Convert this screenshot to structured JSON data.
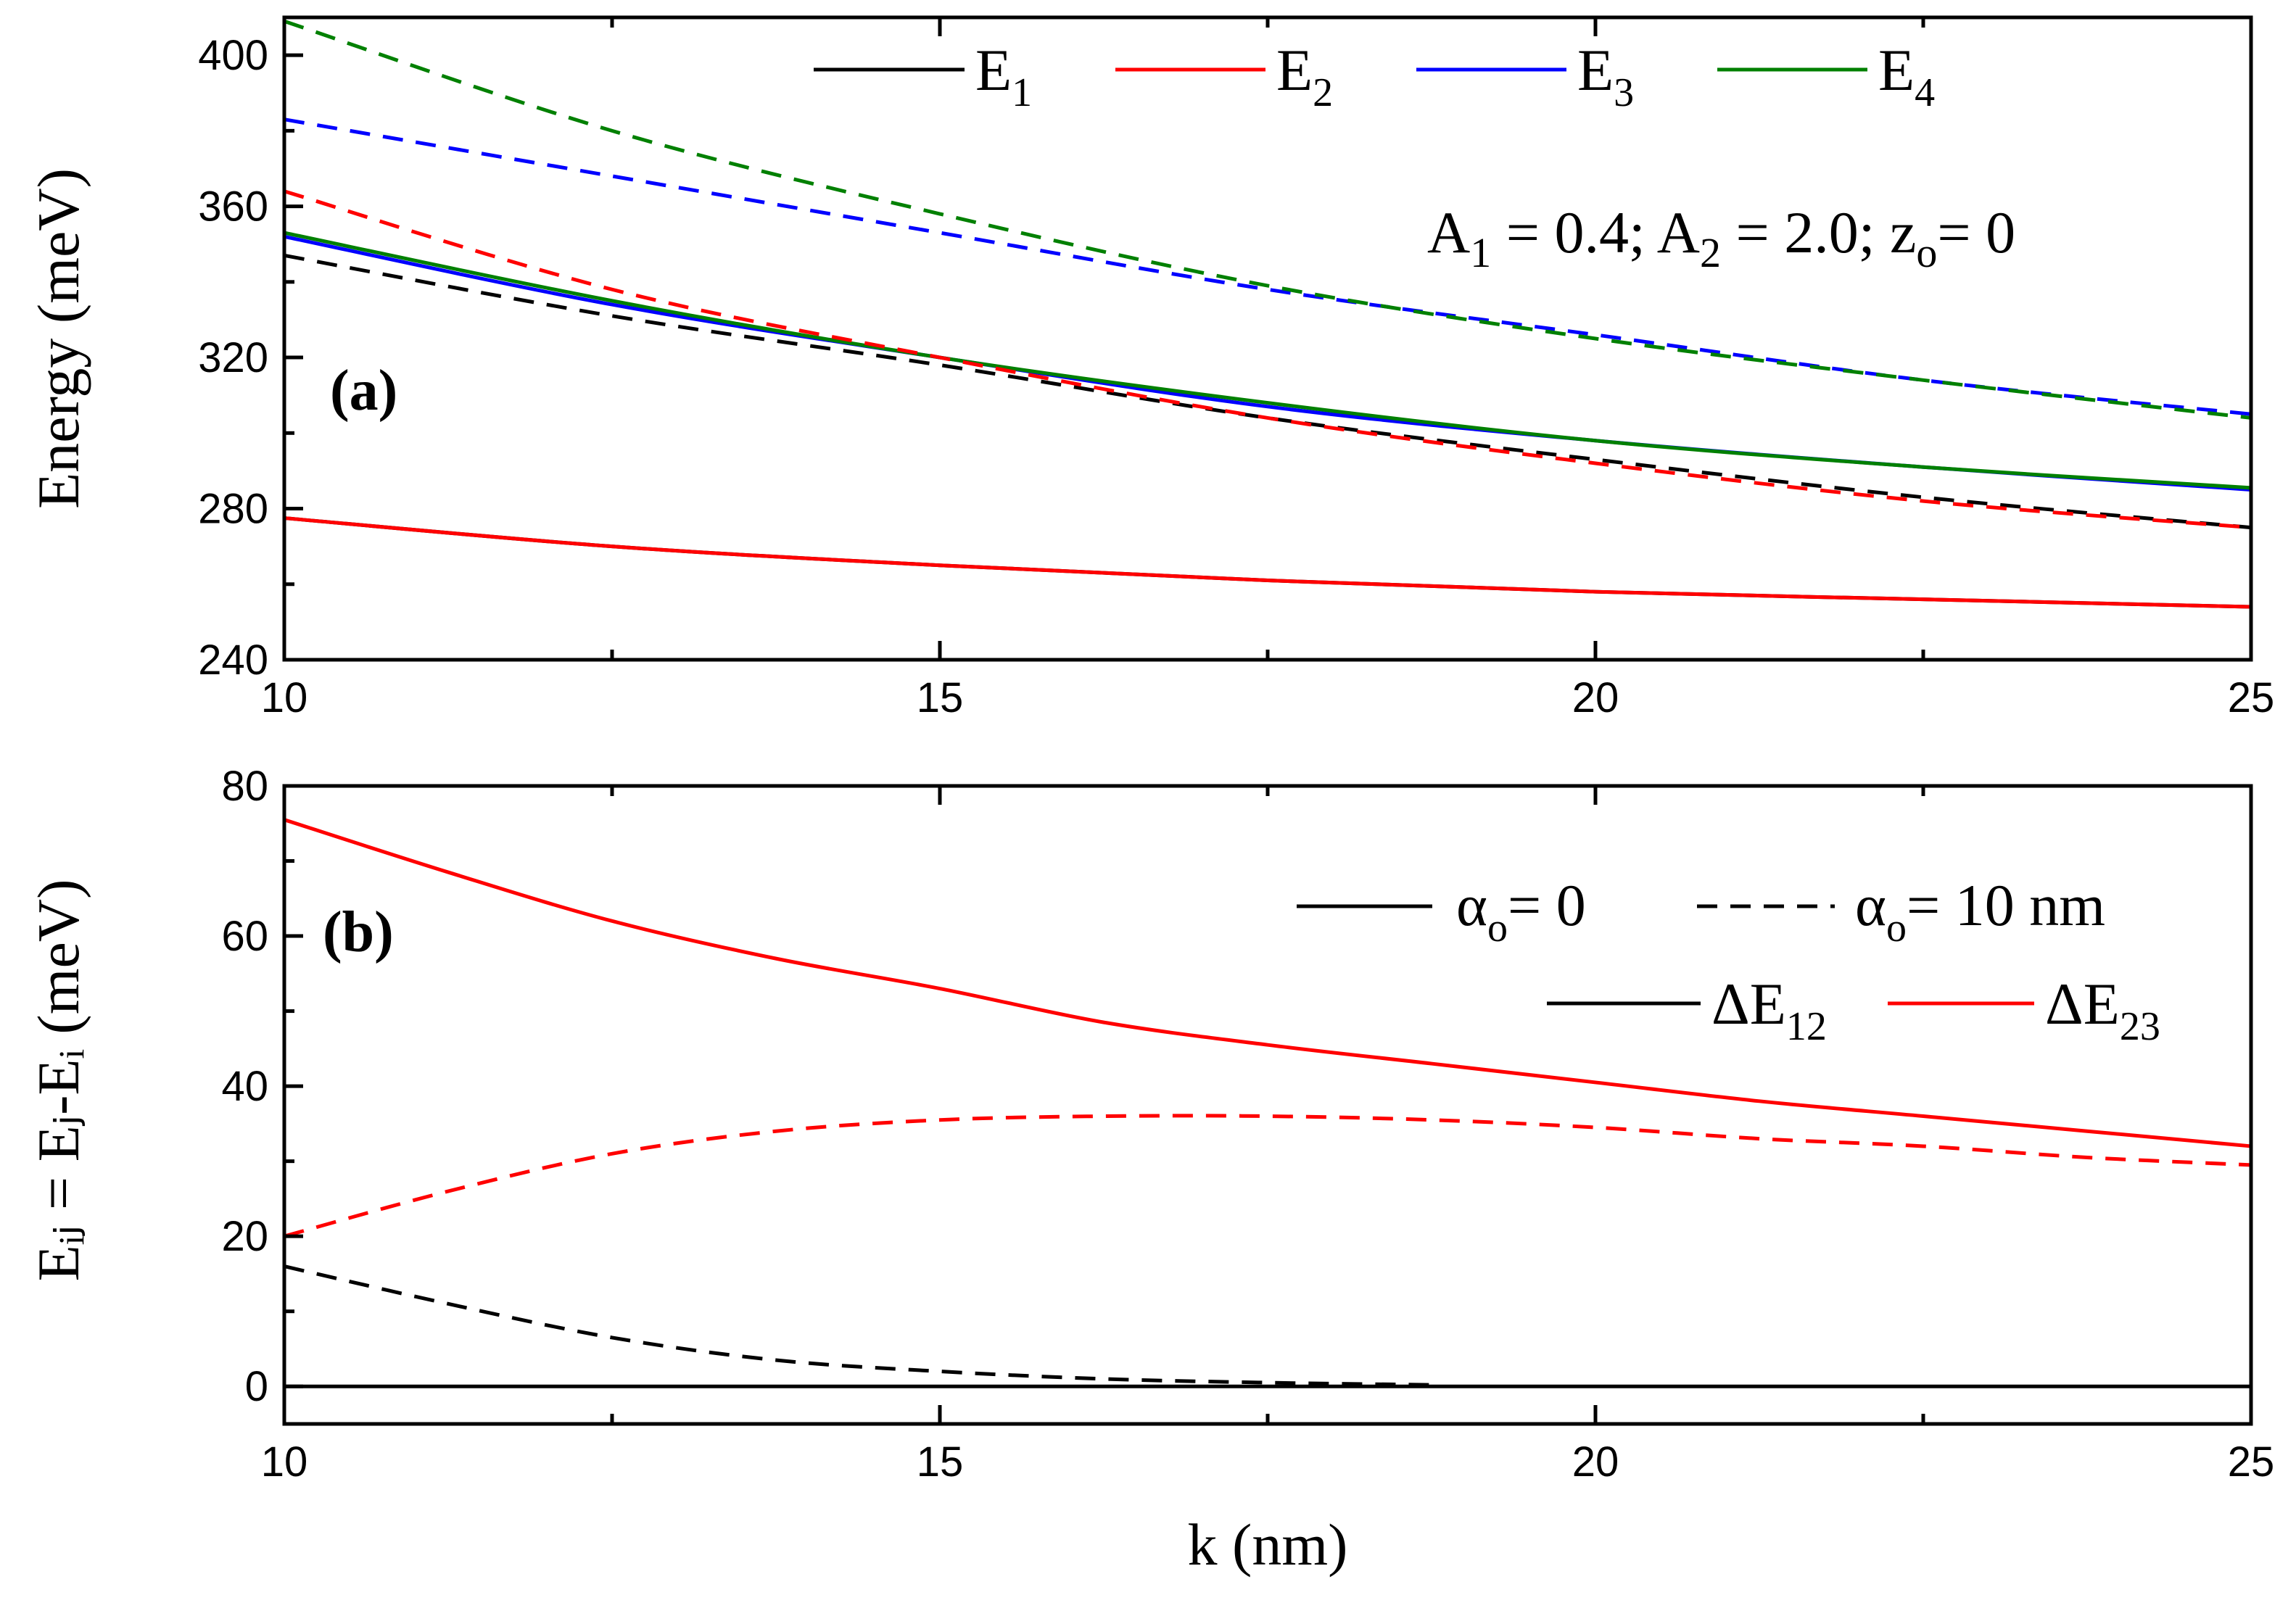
{
  "chart_data": [
    {
      "panel": "a",
      "type": "line",
      "panel_label": "(a)",
      "ylabel": "Energy (meV)",
      "xlim": [
        10,
        25
      ],
      "ylim": [
        240,
        410
      ],
      "xticks": [
        10,
        15,
        20,
        25
      ],
      "yticks": [
        240,
        280,
        320,
        360,
        400
      ],
      "annotation": {
        "a1": "A",
        "s1": "1",
        "m1": " = 0.4; A",
        "s2": "2",
        "m2": " = 2.0; z",
        "s3": "o",
        "m3": "= 0"
      },
      "legend": [
        {
          "label": "E",
          "sub": "1",
          "color": "#000000"
        },
        {
          "label": "E",
          "sub": "2",
          "color": "#ff0000"
        },
        {
          "label": "E",
          "sub": "3",
          "color": "#0000ff"
        },
        {
          "label": "E",
          "sub": "4",
          "color": "#008000"
        }
      ],
      "x": [
        10,
        12.5,
        15,
        17.5,
        20,
        22.5,
        25
      ],
      "series": [
        {
          "name": "E1 α=0",
          "color": "#000000",
          "style": "solid",
          "values": [
            277.5,
            270,
            265,
            261,
            258,
            256,
            254
          ]
        },
        {
          "name": "E2 α=0",
          "color": "#ff0000",
          "style": "solid",
          "values": [
            277.5,
            270,
            265,
            261,
            258,
            256,
            254
          ]
        },
        {
          "name": "E3 α=0",
          "color": "#0000ff",
          "style": "solid",
          "values": [
            352,
            334,
            320,
            307,
            298,
            291,
            285
          ]
        },
        {
          "name": "E4 α=0",
          "color": "#008000",
          "style": "solid",
          "values": [
            353,
            335,
            320,
            308,
            298,
            291,
            285.5
          ]
        },
        {
          "name": "E1 α=10",
          "color": "#000000",
          "style": "dashed",
          "values": [
            347,
            331,
            318,
            304,
            293,
            283,
            275
          ]
        },
        {
          "name": "E2 α=10",
          "color": "#ff0000",
          "style": "dashed",
          "values": [
            364,
            338,
            320,
            304,
            292,
            282,
            275
          ]
        },
        {
          "name": "E3 α=10",
          "color": "#0000ff",
          "style": "dashed",
          "values": [
            383,
            368,
            353,
            338,
            326,
            314,
            305
          ]
        },
        {
          "name": "E4 α=10",
          "color": "#008000",
          "style": "dashed",
          "values": [
            409,
            380,
            358,
            339,
            325,
            314,
            304
          ]
        }
      ]
    },
    {
      "panel": "b",
      "type": "line",
      "panel_label": "(b)",
      "ylabel": "Eᵢⱼ = Eⱼ-Eᵢ (meV)",
      "xlabel": "k (nm)",
      "xlim": [
        10,
        25
      ],
      "ylim": [
        -5,
        80
      ],
      "xticks": [
        10,
        15,
        20,
        25
      ],
      "yticks": [
        0,
        20,
        40,
        60,
        80
      ],
      "legend_style": [
        {
          "label": "α",
          "sub": "o",
          "rest": "= 0",
          "style": "solid"
        },
        {
          "label": "α",
          "sub": "o",
          "rest": "= 10 nm",
          "style": "dashed"
        }
      ],
      "legend_color": [
        {
          "label": "ΔE",
          "sub": "12",
          "color": "#000000"
        },
        {
          "label": "ΔE",
          "sub": "23",
          "color": "#ff0000"
        }
      ],
      "x": [
        10,
        11.25,
        12.5,
        13.75,
        15,
        16.25,
        17.5,
        18.75,
        20,
        21.25,
        22.5,
        23.75,
        25
      ],
      "series": [
        {
          "name": "ΔE12 α=0",
          "color": "#000000",
          "style": "solid",
          "values": [
            0,
            0,
            0,
            0,
            0,
            0,
            0,
            0,
            0,
            0,
            0,
            0,
            0
          ]
        },
        {
          "name": "ΔE23 α=0",
          "color": "#ff0000",
          "style": "solid",
          "values": [
            75.5,
            68.5,
            62,
            57,
            53,
            48.5,
            45.5,
            43,
            40.5,
            38,
            36,
            34,
            32
          ]
        },
        {
          "name": "ΔE12 α=10",
          "color": "#000000",
          "style": "dashed",
          "values": [
            16,
            11,
            6.5,
            3.5,
            2,
            1,
            0.5,
            0.2,
            null,
            null,
            null,
            null,
            null
          ]
        },
        {
          "name": "ΔE23 α=10",
          "color": "#ff0000",
          "style": "dashed",
          "values": [
            20,
            26,
            31,
            34,
            35.5,
            36,
            36,
            35.5,
            34.5,
            33,
            32,
            30.5,
            29.5
          ]
        }
      ]
    }
  ]
}
